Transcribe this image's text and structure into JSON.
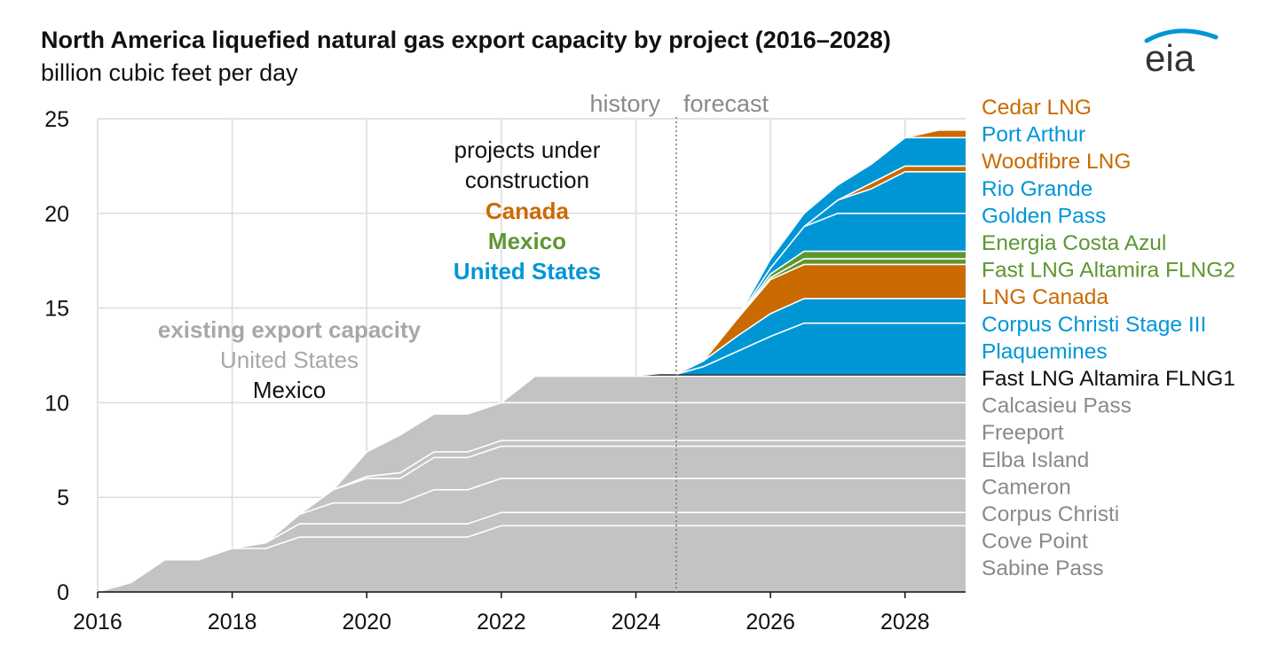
{
  "title": "North America liquefied natural gas export capacity by project (2016–2028)",
  "subtitle": "billion cubic feet per day",
  "logo_text": "eia",
  "colors": {
    "existing": "#c3c3c3",
    "canada": "#cb6a00",
    "mexico": "#5e9732",
    "united_states": "#0096d6",
    "mexico_existing": "#111111",
    "grid": "#dcdcdc",
    "existing_label": "#8a8a8a"
  },
  "annotations": {
    "history": "history",
    "forecast": "forecast",
    "under_construction_line1": "projects under",
    "under_construction_line2": "construction",
    "canada": "Canada",
    "mexico": "Mexico",
    "united_states": "United States",
    "existing_title": "existing export capacity",
    "existing_us": "United States",
    "existing_mexico": "Mexico"
  },
  "chart_data": {
    "type": "area",
    "stacked": true,
    "step_interpolation": true,
    "title": "North America liquefied natural gas export capacity by project (2016–2028)",
    "ylabel": "billion cubic feet per day",
    "xlim": [
      2016,
      2028.9
    ],
    "ylim": [
      0,
      25
    ],
    "x_ticks": [
      2016,
      2018,
      2020,
      2022,
      2024,
      2026,
      2028
    ],
    "y_ticks": [
      0,
      5,
      10,
      15,
      20,
      25
    ],
    "grid": true,
    "history_forecast_divider": 2024.6,
    "legend_position": "right, labels aligned with stacked layers",
    "x": [
      2016,
      2016.5,
      2017,
      2017.5,
      2018,
      2018.5,
      2019,
      2019.5,
      2020,
      2020.5,
      2021,
      2021.5,
      2022,
      2022.5,
      2023,
      2023.5,
      2024,
      2024.35,
      2024.6,
      2025,
      2025.5,
      2026,
      2026.5,
      2027,
      2027.5,
      2028,
      2028.5,
      2028.9
    ],
    "series": [
      {
        "name": "Sabine Pass",
        "group": "existing",
        "values": [
          0,
          0.5,
          1.7,
          1.7,
          2.3,
          2.3,
          2.9,
          2.9,
          2.9,
          2.9,
          2.9,
          2.9,
          3.5,
          3.5,
          3.5,
          3.5,
          3.5,
          3.5,
          3.5,
          3.5,
          3.5,
          3.5,
          3.5,
          3.5,
          3.5,
          3.5,
          3.5,
          3.5
        ]
      },
      {
        "name": "Cove Point",
        "group": "existing",
        "values": [
          0,
          0,
          0,
          0,
          0,
          0.3,
          0.7,
          0.7,
          0.7,
          0.7,
          0.7,
          0.7,
          0.7,
          0.7,
          0.7,
          0.7,
          0.7,
          0.7,
          0.7,
          0.7,
          0.7,
          0.7,
          0.7,
          0.7,
          0.7,
          0.7,
          0.7,
          0.7
        ]
      },
      {
        "name": "Corpus Christi",
        "group": "existing",
        "values": [
          0,
          0,
          0,
          0,
          0,
          0,
          0.5,
          1.1,
          1.1,
          1.1,
          1.8,
          1.8,
          1.8,
          1.8,
          1.8,
          1.8,
          1.8,
          1.8,
          1.8,
          1.8,
          1.8,
          1.8,
          1.8,
          1.8,
          1.8,
          1.8,
          1.8,
          1.8
        ]
      },
      {
        "name": "Cameron",
        "group": "existing",
        "values": [
          0,
          0,
          0,
          0,
          0,
          0,
          0,
          0.7,
          1.3,
          1.3,
          1.7,
          1.7,
          1.7,
          1.7,
          1.7,
          1.7,
          1.7,
          1.7,
          1.7,
          1.7,
          1.7,
          1.7,
          1.7,
          1.7,
          1.7,
          1.7,
          1.7,
          1.7
        ]
      },
      {
        "name": "Elba Island",
        "group": "existing",
        "values": [
          0,
          0,
          0,
          0,
          0,
          0,
          0,
          0,
          0.1,
          0.3,
          0.3,
          0.3,
          0.3,
          0.3,
          0.3,
          0.3,
          0.3,
          0.3,
          0.3,
          0.3,
          0.3,
          0.3,
          0.3,
          0.3,
          0.3,
          0.3,
          0.3,
          0.3
        ]
      },
      {
        "name": "Freeport",
        "group": "existing",
        "values": [
          0,
          0,
          0,
          0,
          0,
          0,
          0,
          0,
          1.3,
          2.0,
          2.0,
          2.0,
          2.0,
          2.0,
          2.0,
          2.0,
          2.0,
          2.0,
          2.0,
          2.0,
          2.0,
          2.0,
          2.0,
          2.0,
          2.0,
          2.0,
          2.0,
          2.0
        ]
      },
      {
        "name": "Calcasieu Pass",
        "group": "existing",
        "values": [
          0,
          0,
          0,
          0,
          0,
          0,
          0,
          0,
          0,
          0,
          0,
          0,
          0,
          1.4,
          1.4,
          1.4,
          1.4,
          1.4,
          1.4,
          1.4,
          1.4,
          1.4,
          1.4,
          1.4,
          1.4,
          1.4,
          1.4,
          1.4
        ]
      },
      {
        "name": "Fast LNG Altamira FLNG1",
        "group": "mexico_existing",
        "values": [
          0,
          0,
          0,
          0,
          0,
          0,
          0,
          0,
          0,
          0,
          0,
          0,
          0,
          0,
          0,
          0,
          0,
          0.1,
          0.1,
          0.1,
          0.1,
          0.1,
          0.1,
          0.1,
          0.1,
          0.1,
          0.1,
          0.1
        ]
      },
      {
        "name": "Plaquemines",
        "group": "united_states",
        "values": [
          0,
          0,
          0,
          0,
          0,
          0,
          0,
          0,
          0,
          0,
          0,
          0,
          0,
          0,
          0,
          0,
          0,
          0,
          0,
          0.4,
          1.2,
          2.0,
          2.7,
          2.7,
          2.7,
          2.7,
          2.7,
          2.7
        ]
      },
      {
        "name": "Corpus Christi Stage III",
        "group": "united_states",
        "values": [
          0,
          0,
          0,
          0,
          0,
          0,
          0,
          0,
          0,
          0,
          0,
          0,
          0,
          0,
          0,
          0,
          0,
          0,
          0,
          0.3,
          0.8,
          1.2,
          1.3,
          1.3,
          1.3,
          1.3,
          1.3,
          1.3
        ]
      },
      {
        "name": "LNG Canada",
        "group": "canada",
        "values": [
          0,
          0,
          0,
          0,
          0,
          0,
          0,
          0,
          0,
          0,
          0,
          0,
          0,
          0,
          0,
          0,
          0,
          0,
          0,
          0,
          0.9,
          1.8,
          1.8,
          1.8,
          1.8,
          1.8,
          1.8,
          1.8
        ]
      },
      {
        "name": "Fast LNG Altamira FLNG2",
        "group": "mexico",
        "values": [
          0,
          0,
          0,
          0,
          0,
          0,
          0,
          0,
          0,
          0,
          0,
          0,
          0,
          0,
          0,
          0,
          0,
          0,
          0,
          0,
          0,
          0.1,
          0.3,
          0.3,
          0.3,
          0.3,
          0.3,
          0.3
        ]
      },
      {
        "name": "Energia Costa Azul",
        "group": "mexico",
        "values": [
          0,
          0,
          0,
          0,
          0,
          0,
          0,
          0,
          0,
          0,
          0,
          0,
          0,
          0,
          0,
          0,
          0,
          0,
          0,
          0,
          0,
          0.2,
          0.4,
          0.4,
          0.4,
          0.4,
          0.4,
          0.4
        ]
      },
      {
        "name": "Golden Pass",
        "group": "united_states",
        "values": [
          0,
          0,
          0,
          0,
          0,
          0,
          0,
          0,
          0,
          0,
          0,
          0,
          0,
          0,
          0,
          0,
          0,
          0,
          0,
          0,
          0,
          0.3,
          1.3,
          2.0,
          2.0,
          2.0,
          2.0,
          2.0
        ]
      },
      {
        "name": "Rio Grande",
        "group": "united_states",
        "values": [
          0,
          0,
          0,
          0,
          0,
          0,
          0,
          0,
          0,
          0,
          0,
          0,
          0,
          0,
          0,
          0,
          0,
          0,
          0,
          0,
          0,
          0,
          0,
          0.7,
          1.3,
          2.2,
          2.2,
          2.2
        ]
      },
      {
        "name": "Woodfibre LNG",
        "group": "canada",
        "values": [
          0,
          0,
          0,
          0,
          0,
          0,
          0,
          0,
          0,
          0,
          0,
          0,
          0,
          0,
          0,
          0,
          0,
          0,
          0,
          0,
          0,
          0,
          0,
          0,
          0.3,
          0.3,
          0.3,
          0.3
        ]
      },
      {
        "name": "Port Arthur",
        "group": "united_states",
        "values": [
          0,
          0,
          0,
          0,
          0,
          0,
          0,
          0,
          0,
          0,
          0,
          0,
          0,
          0,
          0,
          0,
          0,
          0,
          0,
          0,
          0,
          0.5,
          0.7,
          0.8,
          1.0,
          1.5,
          1.5,
          1.5
        ]
      },
      {
        "name": "Cedar LNG",
        "group": "canada",
        "values": [
          0,
          0,
          0,
          0,
          0,
          0,
          0,
          0,
          0,
          0,
          0,
          0,
          0,
          0,
          0,
          0,
          0,
          0,
          0,
          0,
          0,
          0,
          0,
          0,
          0,
          0,
          0.4,
          0.4
        ]
      }
    ]
  }
}
